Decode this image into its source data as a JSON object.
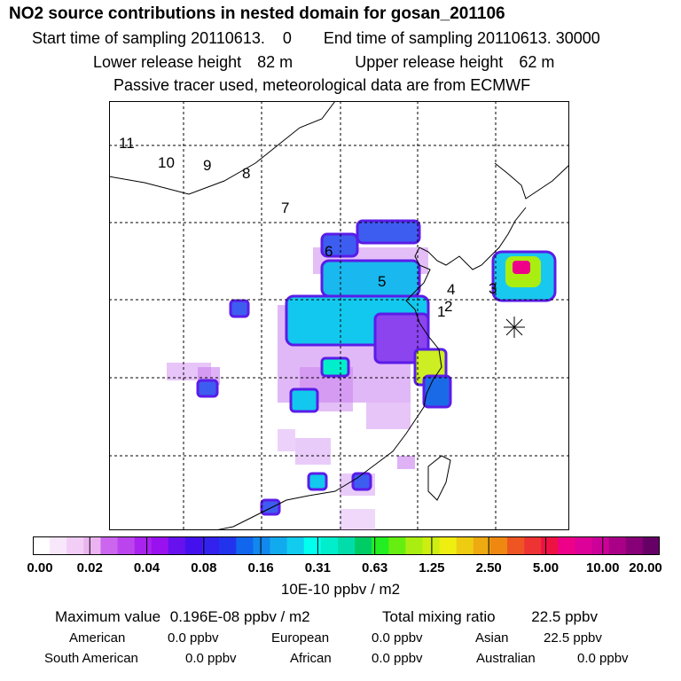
{
  "title": "NO2 source contributions in nested domain for gosan_201106",
  "start_label": "Start time of sampling",
  "start_value": "20110613.    0",
  "end_label": "End time of sampling",
  "end_value": "20110613. 30000",
  "lower_label": "Lower release height",
  "lower_value": "82 m",
  "upper_label": "Upper release height",
  "upper_value": "62 m",
  "note": "Passive tracer used, meteorological data are from ECMWF",
  "map_labels": [
    "1",
    "2",
    "3",
    "4",
    "5",
    "6",
    "7",
    "8",
    "9",
    "10",
    "11"
  ],
  "colorbar": {
    "ticks": [
      "0.00",
      "0.02",
      "0.04",
      "0.08",
      "0.16",
      "0.31",
      "0.63",
      "1.25",
      "2.50",
      "5.00",
      "10.00",
      "20.00"
    ],
    "colors": [
      "#ffffff",
      "#f8e6fa",
      "#f2cdf5",
      "#ebb4f0",
      "#cc66ee",
      "#bb44ee",
      "#aa22ee",
      "#9911ee",
      "#6611ee",
      "#4411ee",
      "#3322ee",
      "#2233ee",
      "#1166ee",
      "#1188ee",
      "#11aaee",
      "#11ccee",
      "#00ffee",
      "#00eecc",
      "#00ddaa",
      "#00cc66",
      "#22ee22",
      "#66ee11",
      "#aaee11",
      "#ccee11",
      "#eeee11",
      "#eecc11",
      "#eeaa11",
      "#ee8811",
      "#ee5522",
      "#ee3333",
      "#ee1144",
      "#ee0088",
      "#dd0099",
      "#cc0099",
      "#aa0088",
      "#880077",
      "#660066"
    ],
    "units": "10E-10 ppbv / m2"
  },
  "summary": {
    "max_label": "Maximum value",
    "max_value": "0.196E-08 ppbv / m2",
    "total_label": "Total mixing ratio",
    "total_value": "22.5 ppbv"
  },
  "regions": [
    {
      "name": "American",
      "value": "0.0 ppbv"
    },
    {
      "name": "European",
      "value": "0.0 ppbv"
    },
    {
      "name": "Asian",
      "value": "22.5 ppbv"
    },
    {
      "name": "South American",
      "value": "0.0 ppbv"
    },
    {
      "name": "African",
      "value": "0.0 ppbv"
    },
    {
      "name": "Australian",
      "value": "0.0 ppbv"
    }
  ]
}
